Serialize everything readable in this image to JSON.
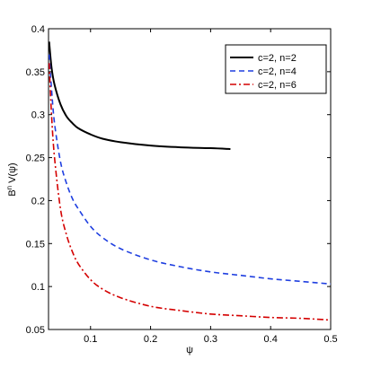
{
  "chart_data": {
    "type": "line",
    "title": "",
    "xlabel": "ψ",
    "ylabel": "B",
    "ylabel_sup": "n",
    "ylabel_tail": " V(ψ)",
    "xlim": [
      0.03,
      0.5
    ],
    "ylim": [
      0.05,
      0.4
    ],
    "x_ticks": [
      0.1,
      0.2,
      0.3,
      0.4,
      0.5
    ],
    "x_tick_labels": [
      "0.1",
      "0.2",
      "0.3",
      "0.4",
      "0.5"
    ],
    "y_ticks": [
      0.05,
      0.1,
      0.15,
      0.2,
      0.25,
      0.3,
      0.35,
      0.4
    ],
    "y_tick_labels": [
      "0.05",
      "0.1",
      "0.15",
      "0.2",
      "0.25",
      "0.3",
      "0.35",
      "0.4"
    ],
    "grid": false,
    "legend_position": "top-right",
    "series": [
      {
        "name": "c=2, n=2",
        "color": "#000000",
        "dash": "solid",
        "x": [
          0.031,
          0.035,
          0.04,
          0.05,
          0.06,
          0.07,
          0.08,
          0.1,
          0.12,
          0.15,
          0.2,
          0.25,
          0.3,
          0.333
        ],
        "y": [
          0.385,
          0.355,
          0.335,
          0.312,
          0.298,
          0.29,
          0.284,
          0.277,
          0.272,
          0.268,
          0.264,
          0.262,
          0.261,
          0.26
        ]
      },
      {
        "name": "c=2, n=4",
        "color": "#1f3fe0",
        "dash": "dashed",
        "x": [
          0.031,
          0.035,
          0.04,
          0.05,
          0.06,
          0.07,
          0.08,
          0.1,
          0.12,
          0.15,
          0.2,
          0.25,
          0.3,
          0.35,
          0.4,
          0.45,
          0.5
        ],
        "y": [
          0.37,
          0.33,
          0.29,
          0.245,
          0.22,
          0.202,
          0.19,
          0.17,
          0.157,
          0.144,
          0.131,
          0.123,
          0.117,
          0.113,
          0.109,
          0.106,
          0.103
        ]
      },
      {
        "name": "c=2, n=6",
        "color": "#d40000",
        "dash": "dashdot",
        "x": [
          0.031,
          0.035,
          0.04,
          0.05,
          0.06,
          0.07,
          0.08,
          0.1,
          0.12,
          0.15,
          0.2,
          0.25,
          0.3,
          0.35,
          0.4,
          0.45,
          0.5
        ],
        "y": [
          0.36,
          0.3,
          0.25,
          0.19,
          0.16,
          0.14,
          0.126,
          0.108,
          0.097,
          0.087,
          0.077,
          0.072,
          0.068,
          0.066,
          0.064,
          0.063,
          0.061
        ]
      }
    ]
  }
}
